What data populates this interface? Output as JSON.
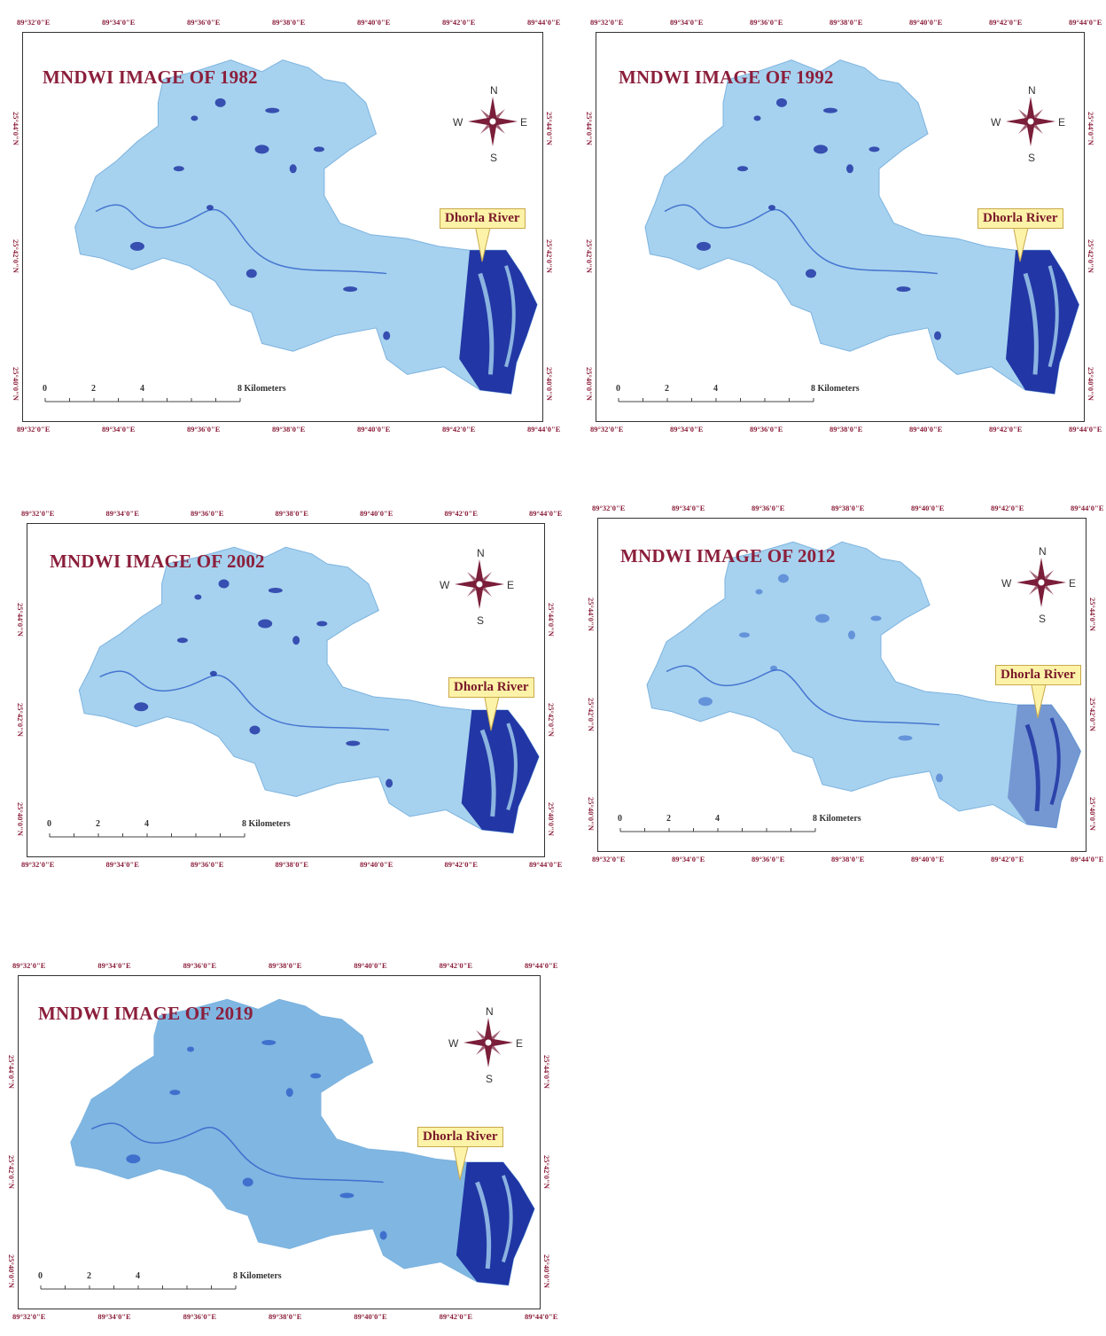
{
  "maps": [
    {
      "title": "MNDWI IMAGE OF 1982",
      "callout": "Dhorla River",
      "compass": {
        "n": "N",
        "e": "E",
        "s": "S",
        "w": "W"
      },
      "top_ticks": [
        "89°32'0\"E",
        "89°34'0\"E",
        "89°36'0\"E",
        "89°38'0\"E",
        "89°40'0\"E",
        "89°42'0\"E",
        "89°44'0\"E"
      ],
      "bottom_ticks": [
        "89°32'0\"E",
        "89°34'0\"E",
        "89°36'0\"E",
        "89°38'0\"E",
        "89°40'0\"E",
        "89°42'0\"E",
        "89°44'0\"E"
      ],
      "lat_ticks": [
        "25°44'0\"N",
        "25°42'0\"N",
        "25°40'0\"N"
      ],
      "scale": {
        "labels": [
          "0",
          "2",
          "4"
        ],
        "end_label": "8 Kilometers"
      }
    },
    {
      "title": "MNDWI IMAGE OF 1992",
      "callout": "Dhorla River",
      "compass": {
        "n": "N",
        "e": "E",
        "s": "S",
        "w": "W"
      },
      "top_ticks": [
        "89°32'0\"E",
        "89°34'0\"E",
        "89°36'0\"E",
        "89°38'0\"E",
        "89°40'0\"E",
        "89°42'0\"E",
        "89°44'0\"E"
      ],
      "bottom_ticks": [
        "89°32'0\"E",
        "89°34'0\"E",
        "89°36'0\"E",
        "89°38'0\"E",
        "89°40'0\"E",
        "89°42'0\"E",
        "89°44'0\"E"
      ],
      "lat_ticks": [
        "25°44'0\"N",
        "25°42'0\"N",
        "25°40'0\"N"
      ],
      "scale": {
        "labels": [
          "0",
          "2",
          "4"
        ],
        "end_label": "8 Kilometers"
      }
    },
    {
      "title": "MNDWI IMAGE OF 2002",
      "callout": "Dhorla River",
      "compass": {
        "n": "N",
        "e": "E",
        "s": "S",
        "w": "W"
      },
      "top_ticks": [
        "89°32'0\"E",
        "89°34'0\"E",
        "89°36'0\"E",
        "89°38'0\"E",
        "89°40'0\"E",
        "89°42'0\"E",
        "89°44'0\"E"
      ],
      "bottom_ticks": [
        "89°32'0\"E",
        "89°34'0\"E",
        "89°36'0\"E",
        "89°38'0\"E",
        "89°40'0\"E",
        "89°42'0\"E",
        "89°44'0\"E"
      ],
      "lat_ticks": [
        "25°44'0\"N",
        "25°42'0\"N",
        "25°40'0\"N"
      ],
      "scale": {
        "labels": [
          "0",
          "2",
          "4"
        ],
        "end_label": "8 Kilometers"
      }
    },
    {
      "title": "MNDWI IMAGE OF 2012",
      "callout": "Dhorla River",
      "compass": {
        "n": "N",
        "e": "E",
        "s": "S",
        "w": "W"
      },
      "top_ticks": [
        "89°32'0\"E",
        "89°34'0\"E",
        "89°36'0\"E",
        "89°38'0\"E",
        "89°40'0\"E",
        "89°42'0\"E",
        "89°44'0\"E"
      ],
      "bottom_ticks": [
        "89°32'0\"E",
        "89°34'0\"E",
        "89°36'0\"E",
        "89°38'0\"E",
        "89°40'0\"E",
        "89°42'0\"E",
        "89°44'0\"E"
      ],
      "lat_ticks": [
        "25°44'0\"N",
        "25°42'0\"N",
        "25°40'0\"N"
      ],
      "scale": {
        "labels": [
          "0",
          "2",
          "4"
        ],
        "end_label": "8 Kilometers"
      }
    },
    {
      "title": "MNDWI IMAGE OF 2019",
      "callout": "Dhorla River",
      "compass": {
        "n": "N",
        "e": "E",
        "s": "S",
        "w": "W"
      },
      "top_ticks": [
        "89°32'0\"E",
        "89°34'0\"E",
        "89°36'0\"E",
        "89°38'0\"E",
        "89°40'0\"E",
        "89°42'0\"E",
        "89°44'0\"E"
      ],
      "bottom_ticks": [
        "89°32'0\"E",
        "89°34'0\"E",
        "89°36'0\"E",
        "89°38'0\"E",
        "89°40'0\"E",
        "89°42'0\"E",
        "89°44'0\"E"
      ],
      "lat_ticks": [
        "25°44'0\"N",
        "25°42'0\"N",
        "25°40'0\"N"
      ],
      "scale": {
        "labels": [
          "0",
          "2",
          "4"
        ],
        "end_label": "8 Kilometers"
      }
    }
  ],
  "colors": {
    "land": "#a6d2ef",
    "land_dark": "#7fb6e2",
    "water": "#1a2ea0",
    "water_mid": "#2f5fc8",
    "title": "#8b1f3b",
    "callout_bg": "#fdf3a8"
  }
}
